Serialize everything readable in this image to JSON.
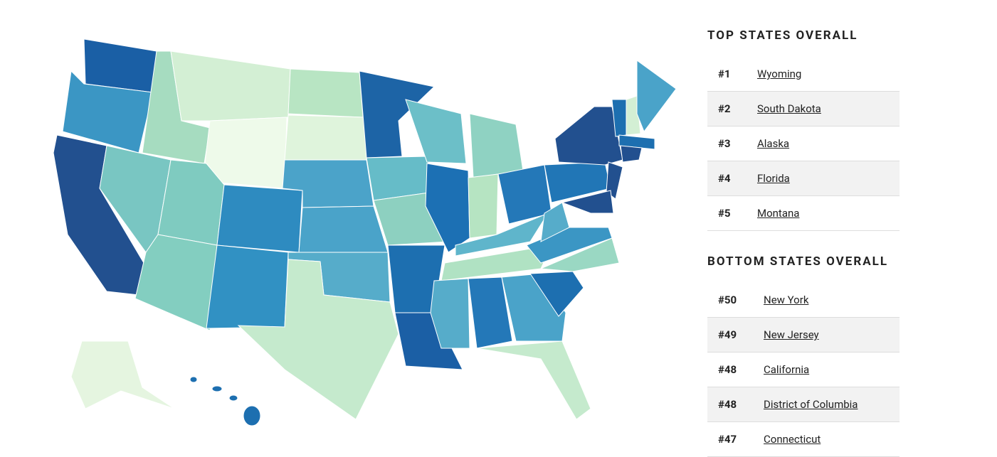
{
  "top_states": {
    "title": "TOP STATES OVERALL",
    "rows": [
      {
        "rank": "#1",
        "state": "Wyoming"
      },
      {
        "rank": "#2",
        "state": "South Dakota"
      },
      {
        "rank": "#3",
        "state": "Alaska"
      },
      {
        "rank": "#4",
        "state": "Florida"
      },
      {
        "rank": "#5",
        "state": "Montana"
      }
    ]
  },
  "bottom_states": {
    "title": "BOTTOM STATES OVERALL",
    "rows": [
      {
        "rank": "#50",
        "state": "New York"
      },
      {
        "rank": "#49",
        "state": "New Jersey"
      },
      {
        "rank": "#48",
        "state": "California"
      },
      {
        "rank": "#48",
        "state": "District of Columbia"
      },
      {
        "rank": "#47",
        "state": "Connecticut"
      }
    ]
  }
}
